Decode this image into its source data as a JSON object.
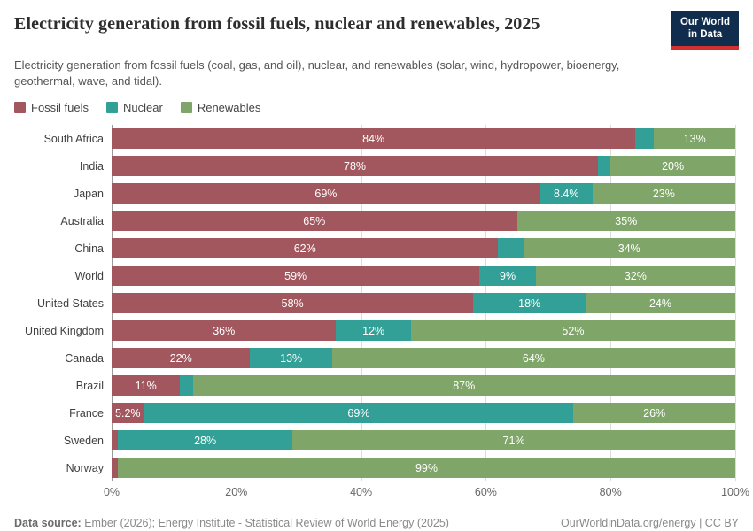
{
  "header": {
    "title": "Electricity generation from fossil fuels, nuclear and renewables, 2025",
    "subtitle": "Electricity generation from fossil fuels (coal, gas, and oil), nuclear, and renewables (solar, wind, hydropower, bioenergy, geothermal, wave, and tidal).",
    "logo": {
      "line1": "Our World",
      "line2": "in Data",
      "bg_color": "#102d4e",
      "accent_color": "#d0302e"
    }
  },
  "legend": [
    {
      "label": "Fossil fuels",
      "color": "#a2575f"
    },
    {
      "label": "Nuclear",
      "color": "#32a096"
    },
    {
      "label": "Renewables",
      "color": "#7fa569"
    }
  ],
  "chart_data": {
    "type": "bar",
    "orientation": "horizontal",
    "stacked": true,
    "unit": "%",
    "xlim": [
      0,
      100
    ],
    "grid": true,
    "legend_position": "top",
    "x_ticks": [
      "0%",
      "20%",
      "40%",
      "60%",
      "80%",
      "100%"
    ],
    "categories": [
      "South Africa",
      "India",
      "Japan",
      "Australia",
      "China",
      "World",
      "United States",
      "United Kingdom",
      "Canada",
      "Brazil",
      "France",
      "Sweden",
      "Norway"
    ],
    "series": [
      {
        "name": "Fossil fuels",
        "color": "#a2575f",
        "values": [
          84,
          78,
          69,
          65,
          62,
          59,
          58,
          36,
          22,
          11,
          5.2,
          1,
          1
        ],
        "labels": [
          "84%",
          "78%",
          "69%",
          "65%",
          "62%",
          "59%",
          "58%",
          "36%",
          "22%",
          "11%",
          "5.2%",
          "",
          ""
        ]
      },
      {
        "name": "Nuclear",
        "color": "#32a096",
        "values": [
          3,
          2,
          8.4,
          0,
          4,
          9,
          18,
          12,
          13,
          2,
          69,
          28,
          0
        ],
        "labels": [
          "",
          "",
          "8.4%",
          "",
          "",
          "9%",
          "18%",
          "12%",
          "13%",
          "",
          "69%",
          "28%",
          ""
        ]
      },
      {
        "name": "Renewables",
        "color": "#7fa569",
        "values": [
          13,
          20,
          23,
          35,
          34,
          32,
          24,
          52,
          64,
          87,
          26,
          71,
          99
        ],
        "labels": [
          "13%",
          "20%",
          "23%",
          "35%",
          "34%",
          "32%",
          "24%",
          "52%",
          "64%",
          "87%",
          "26%",
          "71%",
          "99%"
        ]
      }
    ]
  },
  "footer": {
    "datasource_label": "Data source:",
    "datasource_text": " Ember (2026); Energy Institute - Statistical Review of World Energy (2025)",
    "rights": "OurWorldinData.org/energy | CC BY"
  }
}
